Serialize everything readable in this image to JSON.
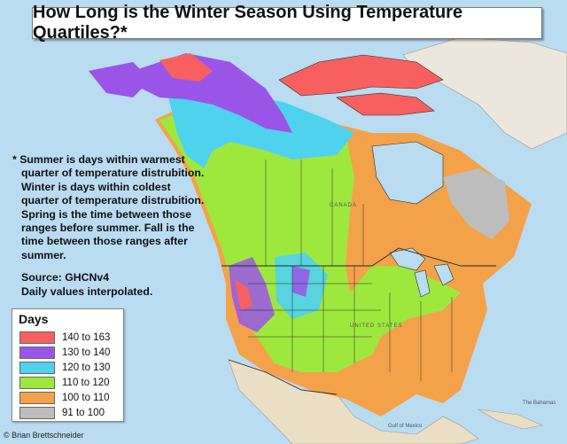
{
  "title": "How Long is the Winter Season Using Temperature Quartiles?*",
  "note": {
    "line1": "* Summer is days within warmest",
    "line2": "quarter of temperature distrubition.",
    "line3": "Winter is days within coldest",
    "line4": "quarter of temperature distrubition.",
    "line5": "Spring is the time between those",
    "line6": "ranges before summer. Fall is the",
    "line7": "time between those ranges after",
    "line8": "summer.",
    "source": "Source: GHCNv4",
    "method": "Daily values interpolated."
  },
  "legend": {
    "title": "Days",
    "items": [
      {
        "label": "140 to 163",
        "color": "#f8605f"
      },
      {
        "label": "130 to 140",
        "color": "#9a55e8"
      },
      {
        "label": "120 to 130",
        "color": "#4fd2ee"
      },
      {
        "label": "110 to 120",
        "color": "#9ee83d"
      },
      {
        "label": "100 to 110",
        "color": "#f3a24a"
      },
      {
        "label": "91 to 100",
        "color": "#bdbdbd"
      }
    ]
  },
  "credit": "© Brian Brettschneider",
  "colors": {
    "ocean": "#b9dcf1",
    "land_outside": "#ece7dd",
    "land_mexico": "#eadfc4",
    "borders": "#2a2a2a"
  },
  "places": {
    "canada": "CANADA",
    "us": "UNITED STATES",
    "gulf": "Gulf of Mexico",
    "bahamas": "The Bahamas"
  }
}
